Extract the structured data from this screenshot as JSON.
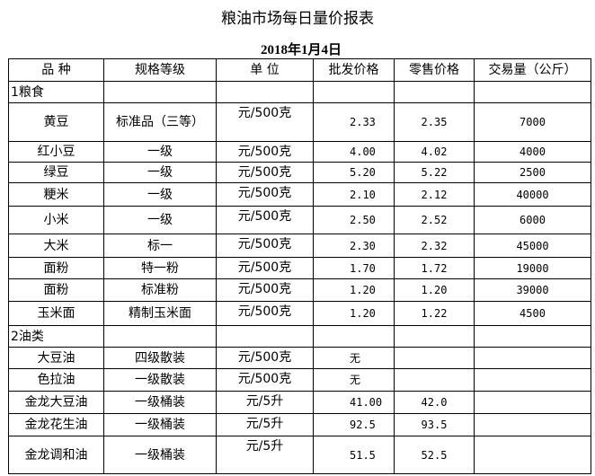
{
  "title": "粮油市场每日量价报表",
  "date": "2018年1月4日",
  "headers": [
    "品 种",
    "规格等级",
    "单 位",
    "批发价格",
    "零售价格",
    "交易量（公斤）"
  ],
  "rows": [
    {
      "type": "cat",
      "name": "1粮食"
    },
    {
      "name": "黄豆",
      "grade": "标准品（三等）",
      "unit": "元/500克",
      "wholesale": "2.33",
      "retail": "2.35",
      "volume": "7000"
    },
    {
      "name": "红小豆",
      "grade": "一级",
      "unit": "元/500克",
      "wholesale": "4.00",
      "retail": "4.02",
      "volume": "4000"
    },
    {
      "name": "绿豆",
      "grade": "一级",
      "unit": "元/500克",
      "wholesale": "5.20",
      "retail": "5.22",
      "volume": "2500"
    },
    {
      "name": "粳米",
      "grade": "一级",
      "unit": "元/500克",
      "wholesale": "2.10",
      "retail": "2.12",
      "volume": "40000"
    },
    {
      "name": "小米",
      "grade": "一级",
      "unit": "元/500克",
      "wholesale": "2.50",
      "retail": "2.52",
      "volume": "6000"
    },
    {
      "name": "大米",
      "grade": "标一",
      "unit": "元/500克",
      "wholesale": "2.30",
      "retail": "2.32",
      "volume": "45000"
    },
    {
      "name": "面粉",
      "grade": "特一粉",
      "unit": "元/500克",
      "wholesale": "1.70",
      "retail": "1.72",
      "volume": "19000"
    },
    {
      "name": "面粉",
      "grade": "标准粉",
      "unit": "元/500克",
      "wholesale": "1.20",
      "retail": "1.20",
      "volume": "39000"
    },
    {
      "name": "玉米面",
      "grade": "精制玉米面",
      "unit": "元/500克",
      "wholesale": "1.20",
      "retail": "1.22",
      "volume": "4500"
    },
    {
      "type": "cat",
      "name": "2油类"
    },
    {
      "name": "大豆油",
      "grade": "四级散装",
      "unit": "元/500克",
      "wholesale": "无",
      "retail": "",
      "volume": ""
    },
    {
      "name": "色拉油",
      "grade": "一级散装",
      "unit": "元/500克",
      "wholesale": "无",
      "retail": "",
      "volume": ""
    },
    {
      "name": "金龙大豆油",
      "grade": "一级桶装",
      "unit": "元/5升",
      "wholesale": "41.00",
      "retail": "42.0",
      "volume": ""
    },
    {
      "name": "金龙花生油",
      "grade": "一级桶装",
      "unit": "元/5升",
      "wholesale": "92.5",
      "retail": "93.5",
      "volume": ""
    },
    {
      "name": "金龙调和油",
      "grade": "一级桶装",
      "unit": "元/5升",
      "wholesale": "51.5",
      "retail": "52.5",
      "volume": ""
    }
  ]
}
